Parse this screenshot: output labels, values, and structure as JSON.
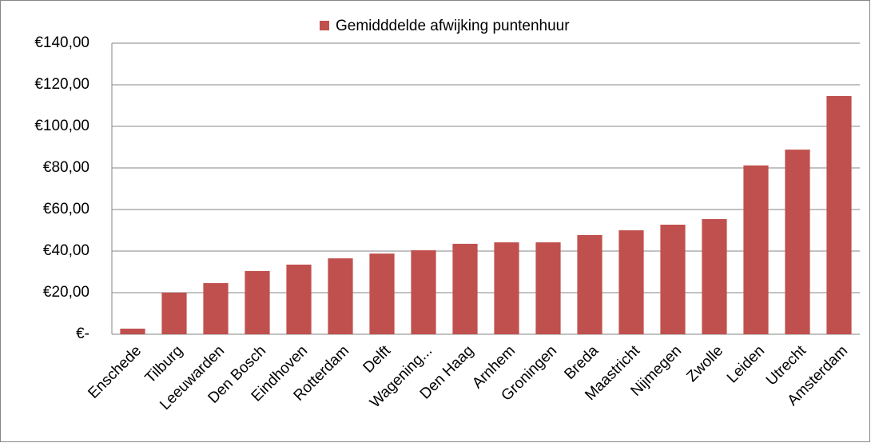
{
  "chart_data": {
    "type": "bar",
    "categories": [
      "Enschede",
      "Tilburg",
      "Leeuwarden",
      "Den Bosch",
      "Eindhoven",
      "Rotterdam",
      "Delft",
      "Wagening...",
      "Den Haag",
      "Arnhem",
      "Groningen",
      "Breda",
      "Maastricht",
      "Nijmegen",
      "Zwolle",
      "Leiden",
      "Utrecht",
      "Amsterdam"
    ],
    "series": [
      {
        "name": "Gemidddelde afwijking puntenhuur",
        "color": "#c0504d",
        "values": [
          2.7,
          20,
          24.6,
          30.4,
          33.5,
          36.5,
          38.8,
          40.4,
          43.5,
          44.2,
          44.2,
          47.7,
          50,
          52.7,
          55.4,
          81.2,
          88.8,
          114.6
        ]
      }
    ],
    "ylim": [
      0,
      140
    ],
    "yticks": [
      {
        "value": 0,
        "label": "€-"
      },
      {
        "value": 20,
        "label": "€20,00"
      },
      {
        "value": 40,
        "label": "€40,00"
      },
      {
        "value": 60,
        "label": "€60,00"
      },
      {
        "value": 80,
        "label": "€80,00"
      },
      {
        "value": 100,
        "label": "€100,00"
      },
      {
        "value": 120,
        "label": "€120,00"
      },
      {
        "value": 140,
        "label": "€140,00"
      }
    ],
    "grid": true,
    "legend": "top"
  }
}
